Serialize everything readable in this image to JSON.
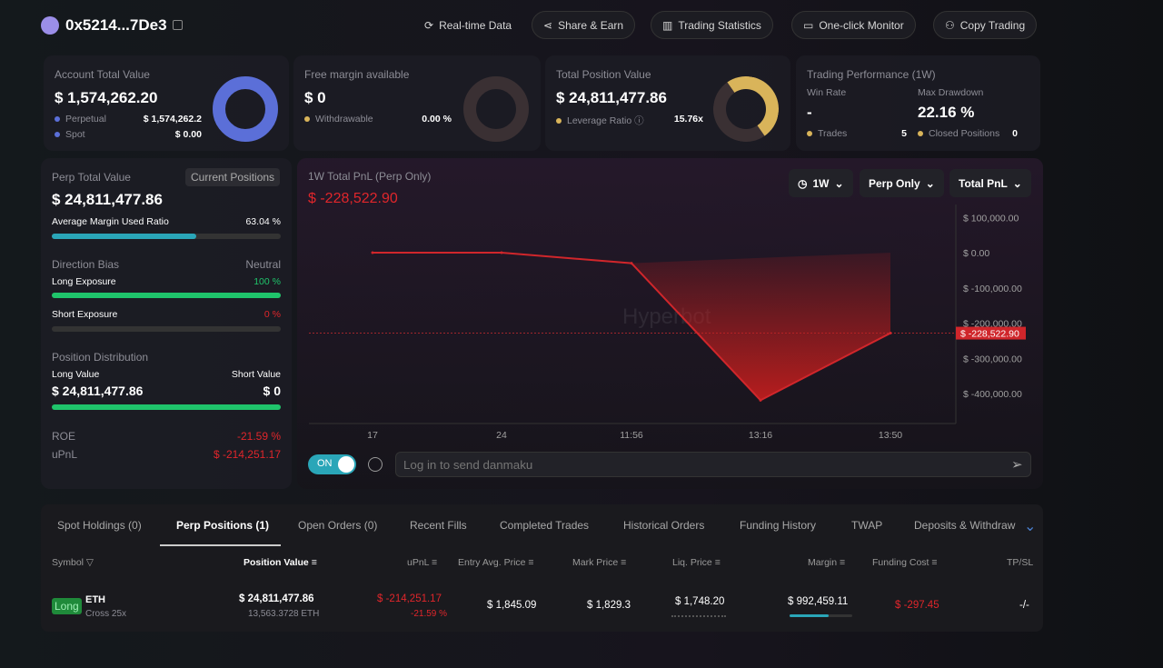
{
  "header": {
    "address": "0x5214...7De3",
    "buttons": [
      "Real-time Data",
      "Share & Earn",
      "Trading Statistics",
      "One-click Monitor",
      "Copy Trading"
    ]
  },
  "account": {
    "title": "Account Total Value",
    "value": "$ 1,574,262.20",
    "perp_label": "Perpetual",
    "perp_value": "$ 1,574,262.2",
    "spot_label": "Spot",
    "spot_value": "$ 0.00",
    "color": "#5b6fd8"
  },
  "margin": {
    "title": "Free margin available",
    "value": "$ 0",
    "withdraw_label": "Withdrawable",
    "withdraw_value": "0.00 %"
  },
  "position": {
    "title": "Total Position Value",
    "value": "$ 24,811,477.86",
    "lev_label": "Leverage Ratio",
    "lev_value": "15.76x",
    "color": "#d9b45a"
  },
  "performance": {
    "title": "Trading Performance (1W)",
    "win_label": "Win Rate",
    "win_value": "-",
    "dd_label": "Max Drawdown",
    "dd_value": "22.16 %",
    "trades_label": "Trades",
    "trades_value": "5",
    "closed_label": "Closed Positions",
    "closed_value": "0"
  },
  "perp": {
    "title": "Perp Total Value",
    "tag": "Current Positions",
    "value": "$ 24,811,477.86",
    "margin_label": "Average Margin Used Ratio",
    "margin_value": "63.04 %",
    "margin_pct": 63.04,
    "bias_label": "Direction Bias",
    "bias_value": "Neutral",
    "long_label": "Long Exposure",
    "long_value": "100 %",
    "long_pct": 100,
    "short_label": "Short Exposure",
    "short_value": "0 %",
    "dist_label": "Position Distribution",
    "long_val_label": "Long Value",
    "short_val_label": "Short Value",
    "long_val": "$ 24,811,477.86",
    "short_val": "$ 0",
    "roe_label": "ROE",
    "roe_value": "-21.59 %",
    "upnl_label": "uPnL",
    "upnl_value": "$ -214,251.17"
  },
  "chart": {
    "title": "1W Total PnL (Perp Only)",
    "value": "$ -228,522.90",
    "filters": [
      "1W",
      "Perp Only",
      "Total PnL"
    ],
    "toggle": "ON",
    "danmaku_placeholder": "Log in to send danmaku",
    "watermark": "Hyperbot"
  },
  "chart_data": {
    "type": "line",
    "title": "1W Total PnL (Perp Only)",
    "x": [
      "17",
      "24",
      "11:56",
      "13:16",
      "13:50"
    ],
    "values": [
      0,
      0,
      -30000,
      -419000,
      -228522.9
    ],
    "ylim": [
      -450000,
      130000
    ],
    "yticks": [
      "$ 100,000.00",
      "$ 0.00",
      "$ -100,000.00",
      "$ -200,000.00",
      "$ -300,000.00",
      "$ -400,000.00"
    ],
    "ytick_values": [
      100000,
      0,
      -100000,
      -200000,
      -300000,
      -400000
    ],
    "current_label": "$ -228,522.90"
  },
  "tabs": [
    "Spot Holdings (0)",
    "Perp Positions (1)",
    "Open Orders (0)",
    "Recent Fills",
    "Completed Trades",
    "Historical Orders",
    "Funding History",
    "TWAP",
    "Deposits & Withdraw"
  ],
  "table": {
    "headers": [
      "Symbol",
      "Position Value",
      "uPnL",
      "Entry Avg. Price",
      "Mark Price",
      "Liq. Price",
      "Margin",
      "Funding Cost",
      "TP/SL"
    ],
    "row": {
      "side": "Long",
      "symbol": "ETH",
      "mode": "Cross 25x",
      "value": "$ 24,811,477.86",
      "size": "13,563.3728 ETH",
      "upnl": "$ -214,251.17",
      "upnl_pct": "-21.59 %",
      "entry": "$ 1,845.09",
      "mark": "$ 1,829.3",
      "liq": "$ 1,748.20",
      "margin": "$ 992,459.11",
      "funding": "$ -297.45",
      "tpsl": "-/-"
    }
  }
}
